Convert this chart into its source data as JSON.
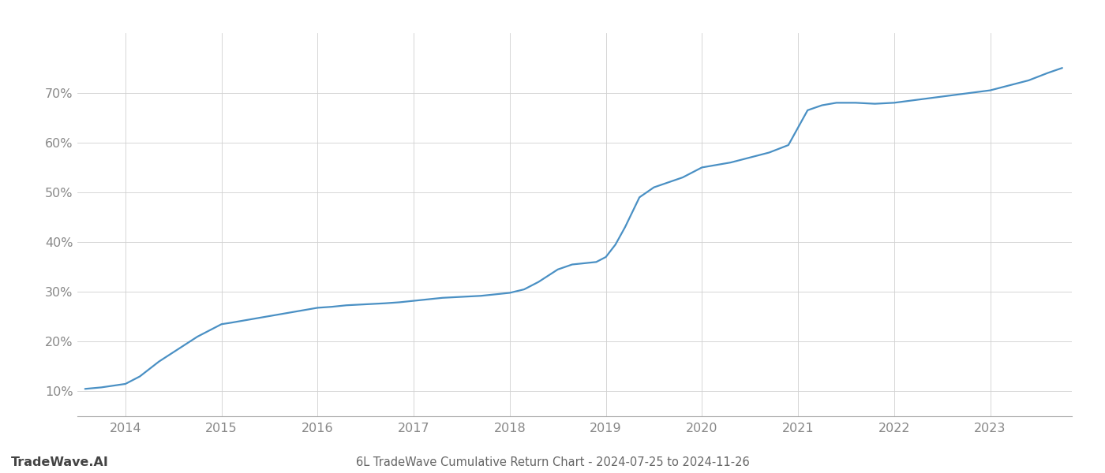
{
  "title": "6L TradeWave Cumulative Return Chart - 2024-07-25 to 2024-11-26",
  "watermark": "TradeWave.AI",
  "x_values": [
    2013.58,
    2013.75,
    2014.0,
    2014.15,
    2014.35,
    2014.55,
    2014.75,
    2014.9,
    2015.0,
    2015.1,
    2015.25,
    2015.4,
    2015.55,
    2015.7,
    2015.85,
    2016.0,
    2016.15,
    2016.3,
    2016.5,
    2016.7,
    2016.85,
    2017.0,
    2017.15,
    2017.3,
    2017.5,
    2017.7,
    2017.85,
    2018.0,
    2018.15,
    2018.3,
    2018.5,
    2018.65,
    2018.8,
    2018.9,
    2019.0,
    2019.1,
    2019.2,
    2019.35,
    2019.5,
    2019.65,
    2019.8,
    2020.0,
    2020.15,
    2020.3,
    2020.5,
    2020.7,
    2020.9,
    2021.0,
    2021.1,
    2021.25,
    2021.4,
    2021.6,
    2021.8,
    2022.0,
    2022.2,
    2022.4,
    2022.6,
    2022.8,
    2023.0,
    2023.2,
    2023.4,
    2023.6,
    2023.75
  ],
  "y_values": [
    10.5,
    10.8,
    11.5,
    13.0,
    16.0,
    18.5,
    21.0,
    22.5,
    23.5,
    23.8,
    24.3,
    24.8,
    25.3,
    25.8,
    26.3,
    26.8,
    27.0,
    27.3,
    27.5,
    27.7,
    27.9,
    28.2,
    28.5,
    28.8,
    29.0,
    29.2,
    29.5,
    29.8,
    30.5,
    32.0,
    34.5,
    35.5,
    35.8,
    36.0,
    37.0,
    39.5,
    43.0,
    49.0,
    51.0,
    52.0,
    53.0,
    55.0,
    55.5,
    56.0,
    57.0,
    58.0,
    59.5,
    63.0,
    66.5,
    67.5,
    68.0,
    68.0,
    67.8,
    68.0,
    68.5,
    69.0,
    69.5,
    70.0,
    70.5,
    71.5,
    72.5,
    74.0,
    75.0
  ],
  "line_color": "#4a90c4",
  "background_color": "#ffffff",
  "grid_color": "#d0d0d0",
  "axis_color": "#aaaaaa",
  "text_color": "#888888",
  "title_color": "#666666",
  "watermark_color": "#444444",
  "ylim": [
    5,
    82
  ],
  "xlim": [
    2013.5,
    2023.85
  ],
  "yticks": [
    10,
    20,
    30,
    40,
    50,
    60,
    70
  ],
  "xticks": [
    2014,
    2015,
    2016,
    2017,
    2018,
    2019,
    2020,
    2021,
    2022,
    2023
  ],
  "line_width": 1.6,
  "title_fontsize": 10.5,
  "tick_fontsize": 11.5,
  "watermark_fontsize": 11.5
}
